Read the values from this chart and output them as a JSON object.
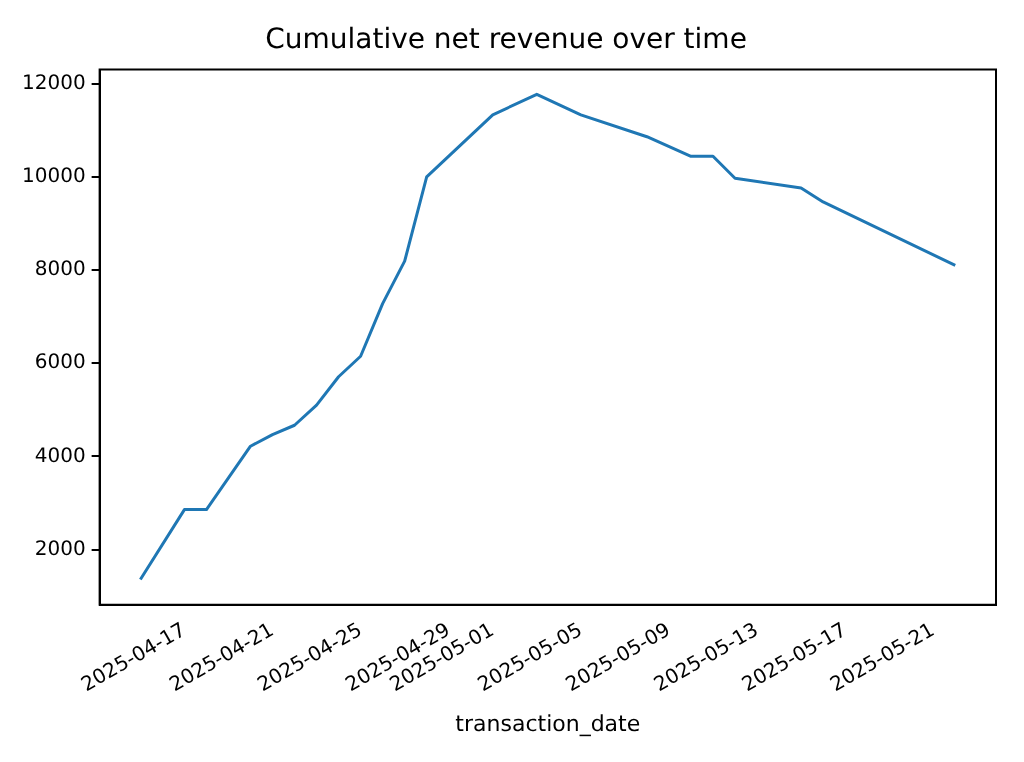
{
  "chart_data": {
    "type": "line",
    "title": "Cumulative net revenue over time",
    "xlabel": "transaction_date",
    "x": [
      "2025-04-15",
      "2025-04-17",
      "2025-04-18",
      "2025-04-20",
      "2025-04-21",
      "2025-04-22",
      "2025-04-23",
      "2025-04-24",
      "2025-04-25",
      "2025-04-26",
      "2025-04-27",
      "2025-04-28",
      "2025-05-01",
      "2025-05-03",
      "2025-05-05",
      "2025-05-08",
      "2025-05-10",
      "2025-05-11",
      "2025-05-12",
      "2025-05-15",
      "2025-05-16",
      "2025-05-22"
    ],
    "series": [
      {
        "color": "#1f77b4",
        "values": [
          1360,
          2860,
          2860,
          4220,
          4470,
          4670,
          5100,
          5710,
          6150,
          7280,
          8190,
          10000,
          11330,
          11770,
          11330,
          10860,
          10440,
          10440,
          9970,
          9760,
          9460,
          8100
        ]
      }
    ],
    "xlim": [
      "2025-04-13T03:36",
      "2025-05-23T20:24"
    ],
    "xticks": [
      "2025-04-17",
      "2025-04-21",
      "2025-04-25",
      "2025-04-29",
      "2025-05-01",
      "2025-05-05",
      "2025-05-09",
      "2025-05-13",
      "2025-05-17",
      "2025-05-21"
    ],
    "ylim": [
      820,
      12300
    ],
    "yticks": [
      2000,
      4000,
      6000,
      8000,
      10000,
      12000
    ],
    "grid": false,
    "legend": false,
    "marker": "none",
    "line_style": "solid"
  }
}
